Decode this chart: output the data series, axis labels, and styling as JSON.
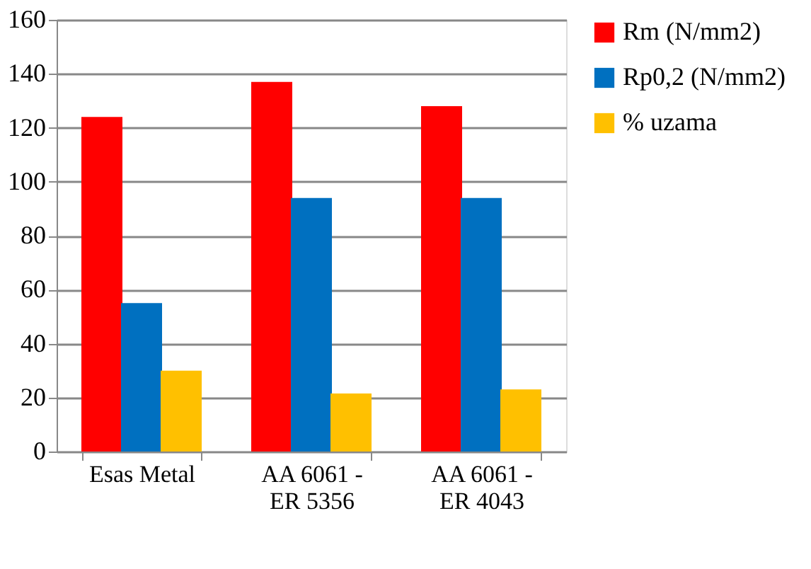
{
  "chart_data": {
    "type": "bar",
    "categories": [
      "Esas Metal",
      "AA 6061 - ER 5356",
      "AA 6061 - ER 4043"
    ],
    "series": [
      {
        "name": "Rm (N/mm2)",
        "color": "#ff0000",
        "values": [
          124,
          137,
          128
        ]
      },
      {
        "name": "Rp0,2 (N/mm2)",
        "color": "#0070c0",
        "values": [
          55,
          94,
          94
        ]
      },
      {
        "name": "% uzama",
        "color": "#ffc000",
        "values": [
          30,
          21.5,
          23
        ]
      }
    ],
    "ylim": [
      0,
      160
    ],
    "yticks": [
      0,
      20,
      40,
      60,
      80,
      100,
      120,
      140,
      160
    ],
    "grid": "y",
    "legend": "top right"
  }
}
